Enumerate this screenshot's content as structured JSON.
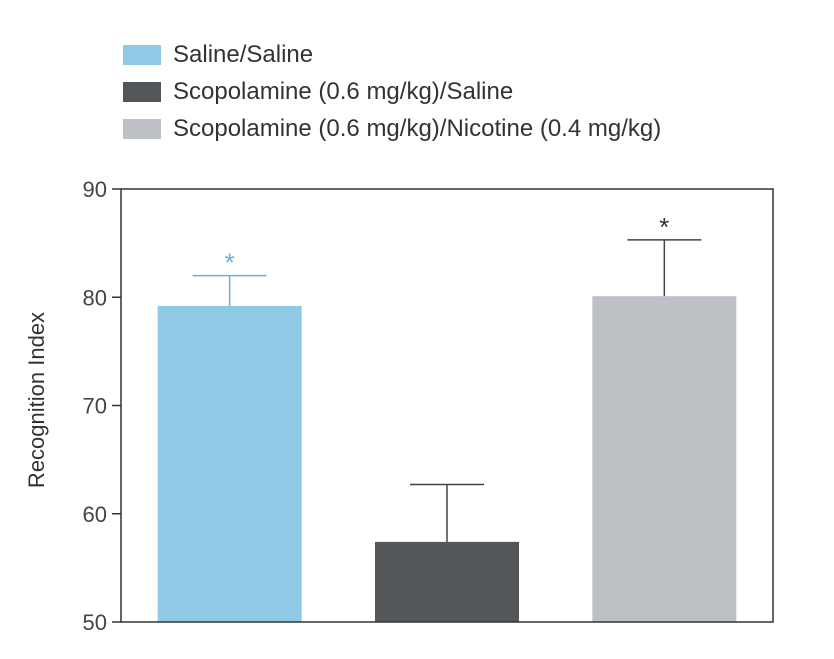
{
  "chart_data": {
    "type": "bar",
    "categories": [
      "Saline/Saline",
      "Scopolamine (0.6 mg/kg)/Saline",
      "Scopolamine (0.6 mg/kg)/Nicotine (0.4 mg/kg)"
    ],
    "values": [
      79.2,
      57.4,
      80.1
    ],
    "errors": [
      2.8,
      5.3,
      5.2
    ],
    "colors": [
      "#8ecae6",
      "#54575a",
      "#bdc0c4"
    ],
    "significance": [
      "*",
      "",
      "*"
    ],
    "significance_colors": [
      "#6ab0d8",
      "#333333",
      "#333333"
    ],
    "ylabel": "Recognition Index",
    "ylim": [
      50,
      90
    ],
    "yticks": [
      50,
      60,
      70,
      80,
      90
    ],
    "legend_position": "top-left",
    "grid": false
  }
}
